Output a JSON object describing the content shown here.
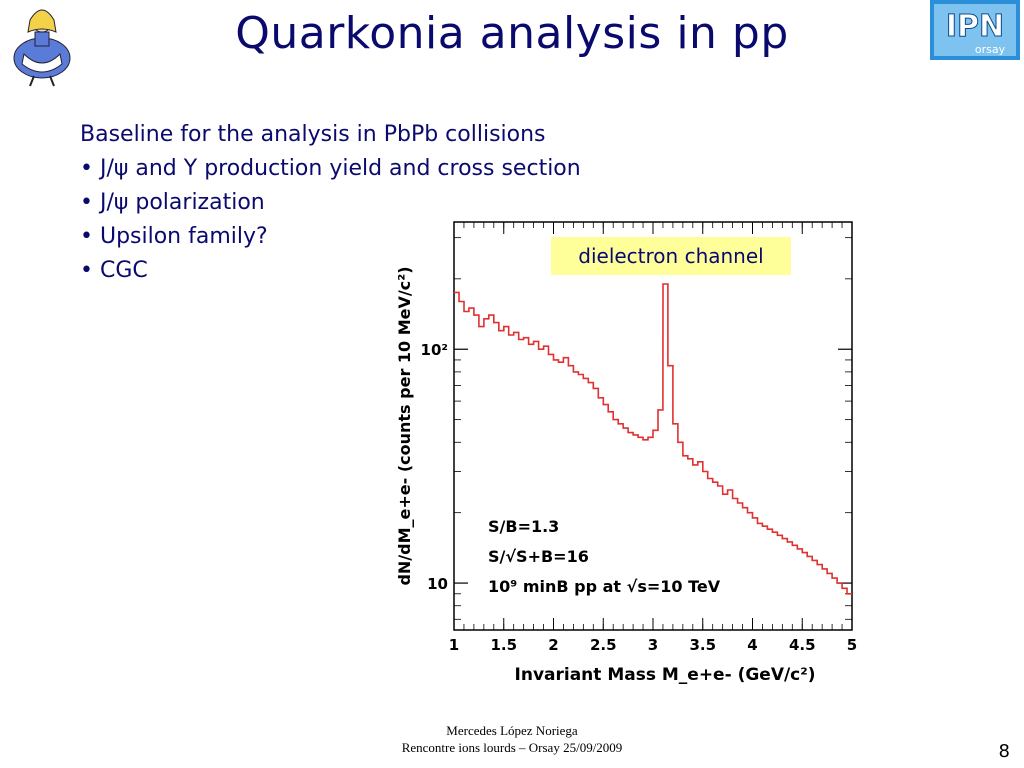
{
  "slide": {
    "title": "Quarkonia analysis in pp",
    "bullets": [
      "Baseline for the analysis in PbPb collisions",
      "• J/ψ and Υ production yield and cross section",
      "• J/ψ polarization",
      "• Upsilon family?",
      "• CGC"
    ],
    "badge": "dielectron channel",
    "footer_line1": "Mercedes López Noriega",
    "footer_line2": "Rencontre ions lourds – Orsay 25/09/2009",
    "page_number": "8",
    "logo_text": "IPN",
    "logo_subtext": "orsay"
  },
  "chart_data": {
    "type": "line",
    "xlabel": "Invariant Mass M_e+e- (GeV/c²)",
    "ylabel": "dN/dM_e+e- (counts per 10 MeV/c²)",
    "xlim": [
      1,
      5
    ],
    "ylim": [
      6.3,
      350
    ],
    "yscale": "log",
    "xticks": [
      "1",
      "1.5",
      "2",
      "2.5",
      "3",
      "3.5",
      "4",
      "4.5",
      "5"
    ],
    "yticks": [
      "10",
      "10²"
    ],
    "annotations": [
      "S/B=1.3",
      "S/√S+B=16",
      "10⁹ minB pp at √s=10 TeV"
    ],
    "series": [
      {
        "color": "#e03030",
        "x": [
          1.0,
          1.05,
          1.1,
          1.15,
          1.2,
          1.25,
          1.3,
          1.35,
          1.4,
          1.45,
          1.5,
          1.55,
          1.6,
          1.65,
          1.7,
          1.75,
          1.8,
          1.85,
          1.9,
          1.95,
          2.0,
          2.05,
          2.1,
          2.15,
          2.2,
          2.25,
          2.3,
          2.35,
          2.4,
          2.45,
          2.5,
          2.55,
          2.6,
          2.65,
          2.7,
          2.75,
          2.8,
          2.85,
          2.9,
          2.95,
          3.0,
          3.05,
          3.1,
          3.15,
          3.2,
          3.25,
          3.3,
          3.35,
          3.4,
          3.45,
          3.5,
          3.55,
          3.6,
          3.65,
          3.7,
          3.75,
          3.8,
          3.85,
          3.9,
          3.95,
          4.0,
          4.05,
          4.1,
          4.15,
          4.2,
          4.25,
          4.3,
          4.35,
          4.4,
          4.45,
          4.5,
          4.55,
          4.6,
          4.65,
          4.7,
          4.75,
          4.8,
          4.85,
          4.9,
          4.95
        ],
        "y": [
          175,
          160,
          145,
          150,
          140,
          125,
          135,
          140,
          130,
          120,
          125,
          115,
          118,
          110,
          112,
          105,
          108,
          100,
          103,
          95,
          90,
          88,
          92,
          85,
          80,
          78,
          75,
          72,
          68,
          62,
          58,
          54,
          50,
          48,
          46,
          44,
          43,
          42,
          41,
          42,
          45,
          55,
          190,
          85,
          48,
          40,
          35,
          34,
          32,
          33,
          30,
          28,
          27,
          26,
          24,
          25,
          23,
          22,
          21,
          20,
          19,
          18,
          17.5,
          17,
          16.5,
          16,
          15.5,
          15,
          14.5,
          14,
          13.5,
          13,
          12.5,
          12,
          11.5,
          11,
          10.5,
          10,
          9.5,
          9
        ]
      }
    ]
  }
}
